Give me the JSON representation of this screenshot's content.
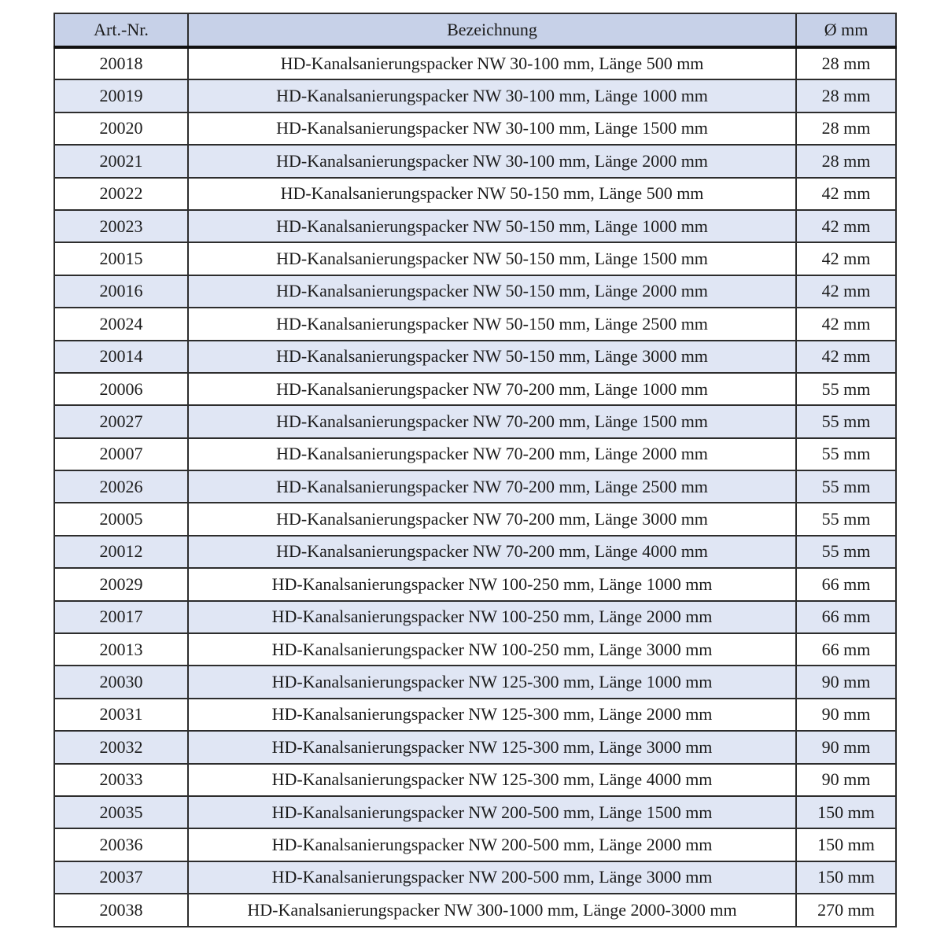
{
  "page": {
    "background": "#ffffff"
  },
  "table": {
    "columns": [
      {
        "key": "art_nr",
        "label": "Art.-Nr."
      },
      {
        "key": "bezeichnung",
        "label": "Bezeichnung"
      },
      {
        "key": "diameter",
        "label": "Ø mm"
      }
    ],
    "colors": {
      "header_bg": "#c7d1e8",
      "stripe_bg": "#e0e6f4",
      "row_bg": "#ffffff",
      "border": "#2d2d2d",
      "header_rule": "#111111",
      "text": "#1b1b1b"
    },
    "rows": [
      {
        "art_nr": "20018",
        "bezeichnung": "HD-Kanalsanierungspacker NW 30-100 mm, Länge 500 mm",
        "diameter": "28 mm"
      },
      {
        "art_nr": "20019",
        "bezeichnung": "HD-Kanalsanierungspacker NW 30-100 mm, Länge 1000 mm",
        "diameter": "28 mm"
      },
      {
        "art_nr": "20020",
        "bezeichnung": "HD-Kanalsanierungspacker NW 30-100 mm, Länge 1500 mm",
        "diameter": "28 mm"
      },
      {
        "art_nr": "20021",
        "bezeichnung": "HD-Kanalsanierungspacker NW 30-100 mm, Länge 2000 mm",
        "diameter": "28 mm"
      },
      {
        "art_nr": "20022",
        "bezeichnung": "HD-Kanalsanierungspacker NW 50-150 mm, Länge 500 mm",
        "diameter": "42 mm"
      },
      {
        "art_nr": "20023",
        "bezeichnung": "HD-Kanalsanierungspacker NW 50-150 mm, Länge 1000 mm",
        "diameter": "42 mm"
      },
      {
        "art_nr": "20015",
        "bezeichnung": "HD-Kanalsanierungspacker NW 50-150 mm, Länge 1500 mm",
        "diameter": "42 mm"
      },
      {
        "art_nr": "20016",
        "bezeichnung": "HD-Kanalsanierungspacker NW 50-150 mm, Länge 2000 mm",
        "diameter": "42 mm"
      },
      {
        "art_nr": "20024",
        "bezeichnung": "HD-Kanalsanierungspacker NW 50-150 mm, Länge 2500 mm",
        "diameter": "42 mm"
      },
      {
        "art_nr": "20014",
        "bezeichnung": "HD-Kanalsanierungspacker NW 50-150 mm, Länge 3000 mm",
        "diameter": "42 mm"
      },
      {
        "art_nr": "20006",
        "bezeichnung": "HD-Kanalsanierungspacker NW 70-200 mm, Länge 1000 mm",
        "diameter": "55 mm"
      },
      {
        "art_nr": "20027",
        "bezeichnung": "HD-Kanalsanierungspacker NW 70-200 mm, Länge 1500 mm",
        "diameter": "55 mm"
      },
      {
        "art_nr": "20007",
        "bezeichnung": "HD-Kanalsanierungspacker NW 70-200 mm, Länge 2000 mm",
        "diameter": "55 mm"
      },
      {
        "art_nr": "20026",
        "bezeichnung": "HD-Kanalsanierungspacker NW 70-200 mm, Länge 2500 mm",
        "diameter": "55 mm"
      },
      {
        "art_nr": "20005",
        "bezeichnung": "HD-Kanalsanierungspacker NW 70-200 mm, Länge 3000 mm",
        "diameter": "55 mm"
      },
      {
        "art_nr": "20012",
        "bezeichnung": "HD-Kanalsanierungspacker NW 70-200 mm, Länge 4000 mm",
        "diameter": "55 mm"
      },
      {
        "art_nr": "20029",
        "bezeichnung": "HD-Kanalsanierungspacker NW 100-250 mm, Länge 1000 mm",
        "diameter": "66 mm"
      },
      {
        "art_nr": "20017",
        "bezeichnung": "HD-Kanalsanierungspacker NW 100-250 mm, Länge 2000 mm",
        "diameter": "66 mm"
      },
      {
        "art_nr": "20013",
        "bezeichnung": "HD-Kanalsanierungspacker NW 100-250 mm, Länge 3000 mm",
        "diameter": "66 mm"
      },
      {
        "art_nr": "20030",
        "bezeichnung": "HD-Kanalsanierungspacker NW 125-300 mm, Länge 1000 mm",
        "diameter": "90 mm"
      },
      {
        "art_nr": "20031",
        "bezeichnung": "HD-Kanalsanierungspacker NW 125-300 mm, Länge 2000 mm",
        "diameter": "90 mm"
      },
      {
        "art_nr": "20032",
        "bezeichnung": "HD-Kanalsanierungspacker NW 125-300 mm, Länge 3000 mm",
        "diameter": "90 mm"
      },
      {
        "art_nr": "20033",
        "bezeichnung": "HD-Kanalsanierungspacker NW 125-300 mm, Länge 4000 mm",
        "diameter": "90 mm"
      },
      {
        "art_nr": "20035",
        "bezeichnung": "HD-Kanalsanierungspacker NW 200-500 mm, Länge 1500 mm",
        "diameter": "150 mm"
      },
      {
        "art_nr": "20036",
        "bezeichnung": "HD-Kanalsanierungspacker NW 200-500 mm, Länge 2000 mm",
        "diameter": "150 mm"
      },
      {
        "art_nr": "20037",
        "bezeichnung": "HD-Kanalsanierungspacker NW 200-500 mm, Länge 3000 mm",
        "diameter": "150 mm"
      },
      {
        "art_nr": "20038",
        "bezeichnung": "HD-Kanalsanierungspacker NW 300-1000 mm, Länge 2000-3000 mm",
        "diameter": "270 mm"
      }
    ]
  }
}
